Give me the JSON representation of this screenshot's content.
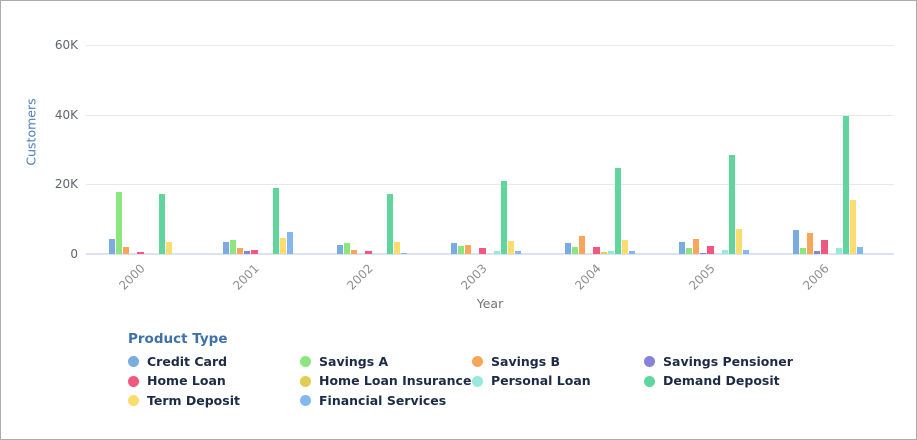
{
  "legend": {
    "title": "Product Type"
  },
  "chart_data": {
    "type": "bar",
    "title": "",
    "xlabel": "Year",
    "ylabel": "Customers",
    "categories": [
      "2000",
      "2001",
      "2002",
      "2003",
      "2004",
      "2005",
      "2006"
    ],
    "ylim": [
      0,
      60000
    ],
    "yticks": [
      {
        "value": 0,
        "label": "0"
      },
      {
        "value": 20000,
        "label": "20K"
      },
      {
        "value": 40000,
        "label": "40K"
      },
      {
        "value": 60000,
        "label": "60K"
      }
    ],
    "grid": true,
    "legend_position": "bottom",
    "series": [
      {
        "name": "Credit Card",
        "color": "#79acdf",
        "values": [
          4200,
          3400,
          2600,
          3100,
          3200,
          3600,
          6800
        ]
      },
      {
        "name": "Savings A",
        "color": "#8de57d",
        "values": [
          17800,
          3900,
          3100,
          2300,
          2000,
          1600,
          1800
        ]
      },
      {
        "name": "Savings B",
        "color": "#f9a65b",
        "values": [
          2000,
          1700,
          1200,
          2600,
          5100,
          4300,
          5900
        ]
      },
      {
        "name": "Savings Pensioner",
        "color": "#8683da",
        "values": [
          0,
          1000,
          0,
          0,
          0,
          300,
          900
        ]
      },
      {
        "name": "Home Loan",
        "color": "#f1587f",
        "values": [
          500,
          1300,
          800,
          1600,
          1900,
          2300,
          4000
        ]
      },
      {
        "name": "Home Loan Insurance",
        "color": "#e1cd54",
        "values": [
          0,
          0,
          0,
          0,
          600,
          0,
          0
        ]
      },
      {
        "name": "Personal Loan",
        "color": "#97e9dd",
        "values": [
          0,
          0,
          0,
          800,
          1000,
          1300,
          1700
        ]
      },
      {
        "name": "Demand Deposit",
        "color": "#5fd69c",
        "values": [
          17300,
          18900,
          17300,
          21100,
          24600,
          28500,
          39700
        ]
      },
      {
        "name": "Term Deposit",
        "color": "#fbdc6f",
        "values": [
          3600,
          4500,
          3500,
          3700,
          4000,
          7100,
          15400
        ]
      },
      {
        "name": "Financial Services",
        "color": "#84b7ee",
        "values": [
          0,
          6200,
          400,
          900,
          900,
          1100,
          1900
        ]
      }
    ]
  }
}
